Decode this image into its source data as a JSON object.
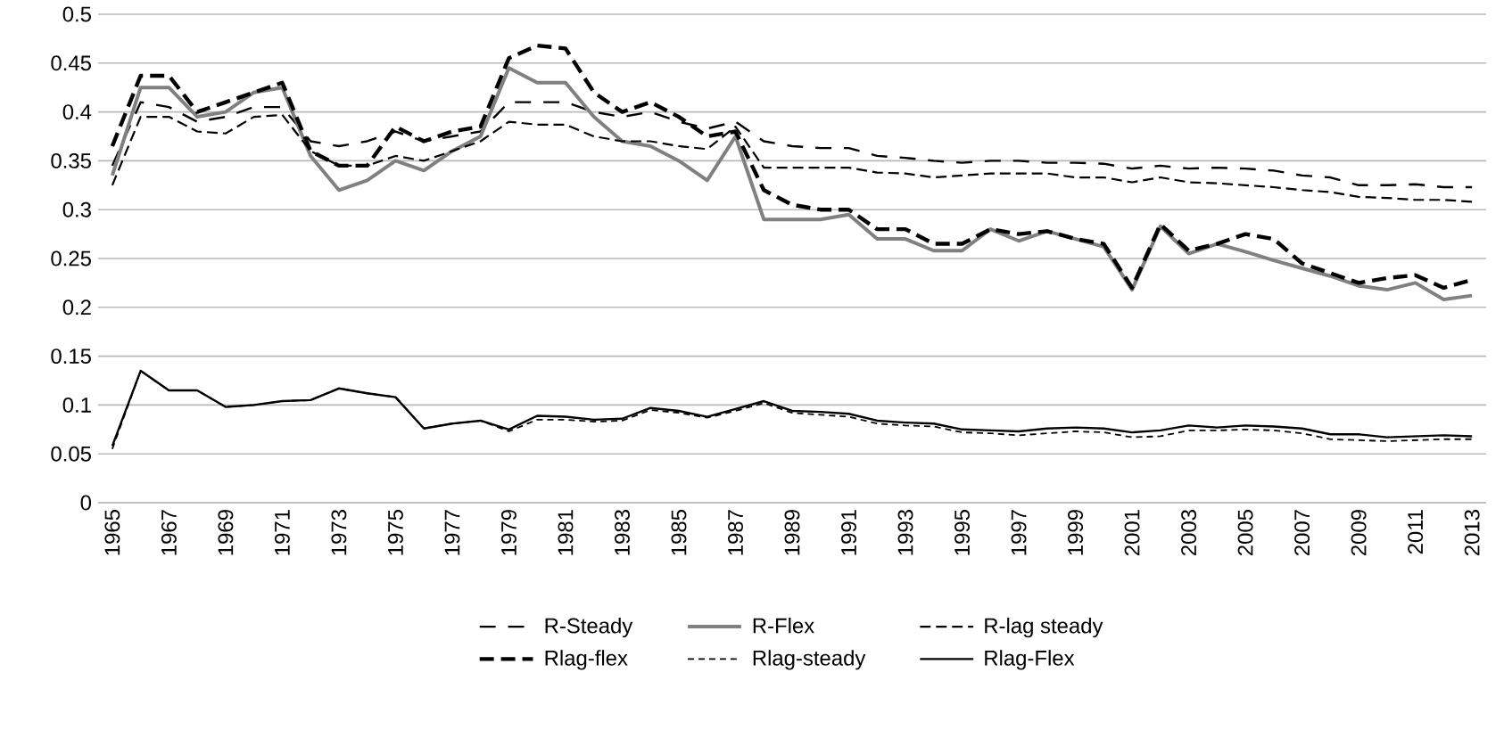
{
  "chart_data": {
    "type": "line",
    "categories": [
      "1965",
      null,
      "1967",
      null,
      "1969",
      null,
      "1971",
      null,
      "1973",
      null,
      "1975",
      null,
      "1977",
      null,
      "1979",
      null,
      "1981",
      null,
      "1983",
      null,
      "1985",
      null,
      "1987",
      null,
      "1989",
      null,
      "1991",
      null,
      "1993",
      null,
      "1995",
      null,
      "1997",
      null,
      "1999",
      null,
      "2001",
      null,
      "2003",
      null,
      "2005",
      null,
      "2007",
      null,
      "2009",
      null,
      "2011",
      null,
      "2013"
    ],
    "series": [
      {
        "name": "R-Steady",
        "color": "#000000",
        "line_style": "dashed",
        "values": [
          0.345,
          0.41,
          0.405,
          0.39,
          0.395,
          0.405,
          0.405,
          0.37,
          0.365,
          0.37,
          0.38,
          0.37,
          0.375,
          0.38,
          0.41,
          0.41,
          0.41,
          0.4,
          0.395,
          0.4,
          0.39,
          0.383,
          0.39,
          0.37,
          0.365,
          0.363,
          0.363,
          0.355,
          0.353,
          0.35,
          0.348,
          0.35,
          0.35,
          0.348,
          0.348,
          0.347,
          0.342,
          0.345,
          0.342,
          0.343,
          0.342,
          0.34,
          0.335,
          0.333,
          0.325,
          0.325,
          0.326,
          0.323,
          0.323
        ]
      },
      {
        "name": "R-Flex",
        "color": "#808080",
        "line_style": "solid",
        "values": [
          0.335,
          0.425,
          0.425,
          0.395,
          0.4,
          0.42,
          0.425,
          0.355,
          0.32,
          0.33,
          0.35,
          0.34,
          0.36,
          0.375,
          0.445,
          0.43,
          0.43,
          0.395,
          0.37,
          0.365,
          0.35,
          0.33,
          0.375,
          0.29,
          0.29,
          0.29,
          0.295,
          0.27,
          0.27,
          0.258,
          0.258,
          0.28,
          0.268,
          0.278,
          0.27,
          0.262,
          0.218,
          0.283,
          0.255,
          0.265,
          0.257,
          0.248,
          0.24,
          0.232,
          0.222,
          0.218,
          0.225,
          0.208,
          0.212
        ]
      },
      {
        "name": "R-lag steady",
        "color": "#000000",
        "line_style": "dashed",
        "values": [
          0.325,
          0.395,
          0.395,
          0.38,
          0.378,
          0.395,
          0.397,
          0.36,
          0.345,
          0.345,
          0.355,
          0.35,
          0.36,
          0.37,
          0.39,
          0.387,
          0.387,
          0.375,
          0.37,
          0.37,
          0.365,
          0.362,
          0.385,
          0.343,
          0.343,
          0.343,
          0.343,
          0.338,
          0.337,
          0.333,
          0.335,
          0.337,
          0.337,
          0.337,
          0.333,
          0.333,
          0.328,
          0.333,
          0.328,
          0.327,
          0.325,
          0.323,
          0.32,
          0.318,
          0.313,
          0.312,
          0.31,
          0.31,
          0.308
        ]
      },
      {
        "name": "Rlag-flex",
        "color": "#000000",
        "line_style": "dashed",
        "values": [
          0.365,
          0.437,
          0.437,
          0.4,
          0.41,
          0.42,
          0.43,
          0.36,
          0.345,
          0.345,
          0.385,
          0.37,
          0.38,
          0.385,
          0.455,
          0.468,
          0.465,
          0.42,
          0.4,
          0.41,
          0.395,
          0.375,
          0.38,
          0.32,
          0.305,
          0.3,
          0.3,
          0.28,
          0.28,
          0.265,
          0.265,
          0.28,
          0.275,
          0.278,
          0.27,
          0.265,
          0.22,
          0.285,
          0.258,
          0.265,
          0.275,
          0.27,
          0.245,
          0.235,
          0.225,
          0.23,
          0.233,
          0.22,
          0.228
        ]
      },
      {
        "name": "Rlag-steady",
        "color": "#000000",
        "line_style": "dashed",
        "values": [
          0.055,
          0.135,
          0.115,
          0.115,
          0.098,
          0.1,
          0.104,
          0.105,
          0.117,
          0.112,
          0.108,
          0.076,
          0.081,
          0.084,
          0.073,
          0.085,
          0.085,
          0.083,
          0.084,
          0.095,
          0.092,
          0.087,
          0.094,
          0.102,
          0.092,
          0.09,
          0.088,
          0.081,
          0.079,
          0.078,
          0.072,
          0.071,
          0.069,
          0.071,
          0.073,
          0.072,
          0.067,
          0.068,
          0.074,
          0.074,
          0.075,
          0.074,
          0.071,
          0.065,
          0.064,
          0.063,
          0.064,
          0.065,
          0.065
        ]
      },
      {
        "name": "Rlag-Flex",
        "color": "#000000",
        "line_style": "solid",
        "values": [
          0.058,
          0.135,
          0.115,
          0.115,
          0.098,
          0.1,
          0.104,
          0.105,
          0.117,
          0.112,
          0.108,
          0.076,
          0.081,
          0.084,
          0.075,
          0.089,
          0.088,
          0.085,
          0.086,
          0.097,
          0.094,
          0.088,
          0.096,
          0.104,
          0.094,
          0.093,
          0.091,
          0.084,
          0.082,
          0.081,
          0.075,
          0.074,
          0.073,
          0.076,
          0.077,
          0.076,
          0.072,
          0.074,
          0.079,
          0.077,
          0.079,
          0.078,
          0.076,
          0.07,
          0.07,
          0.067,
          0.068,
          0.069,
          0.068
        ]
      }
    ],
    "ylim": [
      0,
      0.5
    ],
    "yticks": [
      0,
      0.05,
      0.1,
      0.15,
      0.2,
      0.25,
      0.3,
      0.35,
      0.4,
      0.45,
      0.5
    ],
    "grid": "y",
    "legend": "bottom",
    "marker": "none"
  }
}
